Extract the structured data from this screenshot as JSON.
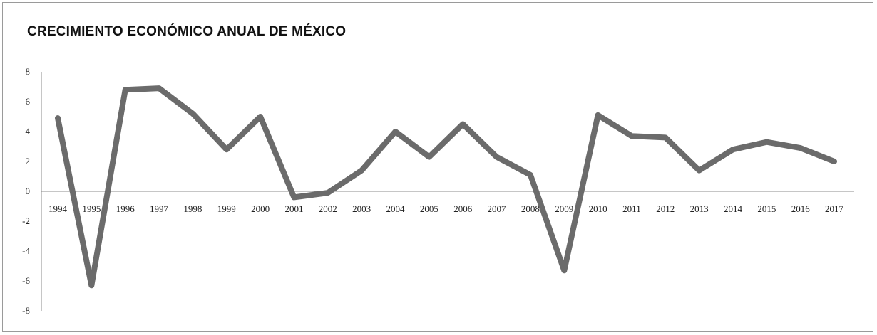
{
  "chart_data": {
    "type": "line",
    "title": "CRECIMIENTO ECONÓMICO ANUAL DE MÉXICO",
    "xlabel": "",
    "ylabel": "",
    "ylim": [
      -8,
      8
    ],
    "yticks": [
      -8,
      -6,
      -4,
      -2,
      0,
      2,
      4,
      6,
      8
    ],
    "categories": [
      "1994",
      "1995",
      "1996",
      "1997",
      "1998",
      "1999",
      "2000",
      "2001",
      "2002",
      "2003",
      "2004",
      "2005",
      "2006",
      "2007",
      "2008",
      "2009",
      "2010",
      "2011",
      "2012",
      "2013",
      "2014",
      "2015",
      "2016",
      "2017"
    ],
    "series": [
      {
        "name": "",
        "values": [
          4.9,
          -6.3,
          6.8,
          6.9,
          5.2,
          2.8,
          5.0,
          -0.4,
          -0.1,
          1.4,
          4.0,
          2.3,
          4.5,
          2.3,
          1.1,
          -5.3,
          5.1,
          3.7,
          3.6,
          1.4,
          2.8,
          3.3,
          2.9,
          2.0
        ]
      }
    ],
    "line_color": "#6b6b6b",
    "grid": false,
    "legend": "none"
  }
}
